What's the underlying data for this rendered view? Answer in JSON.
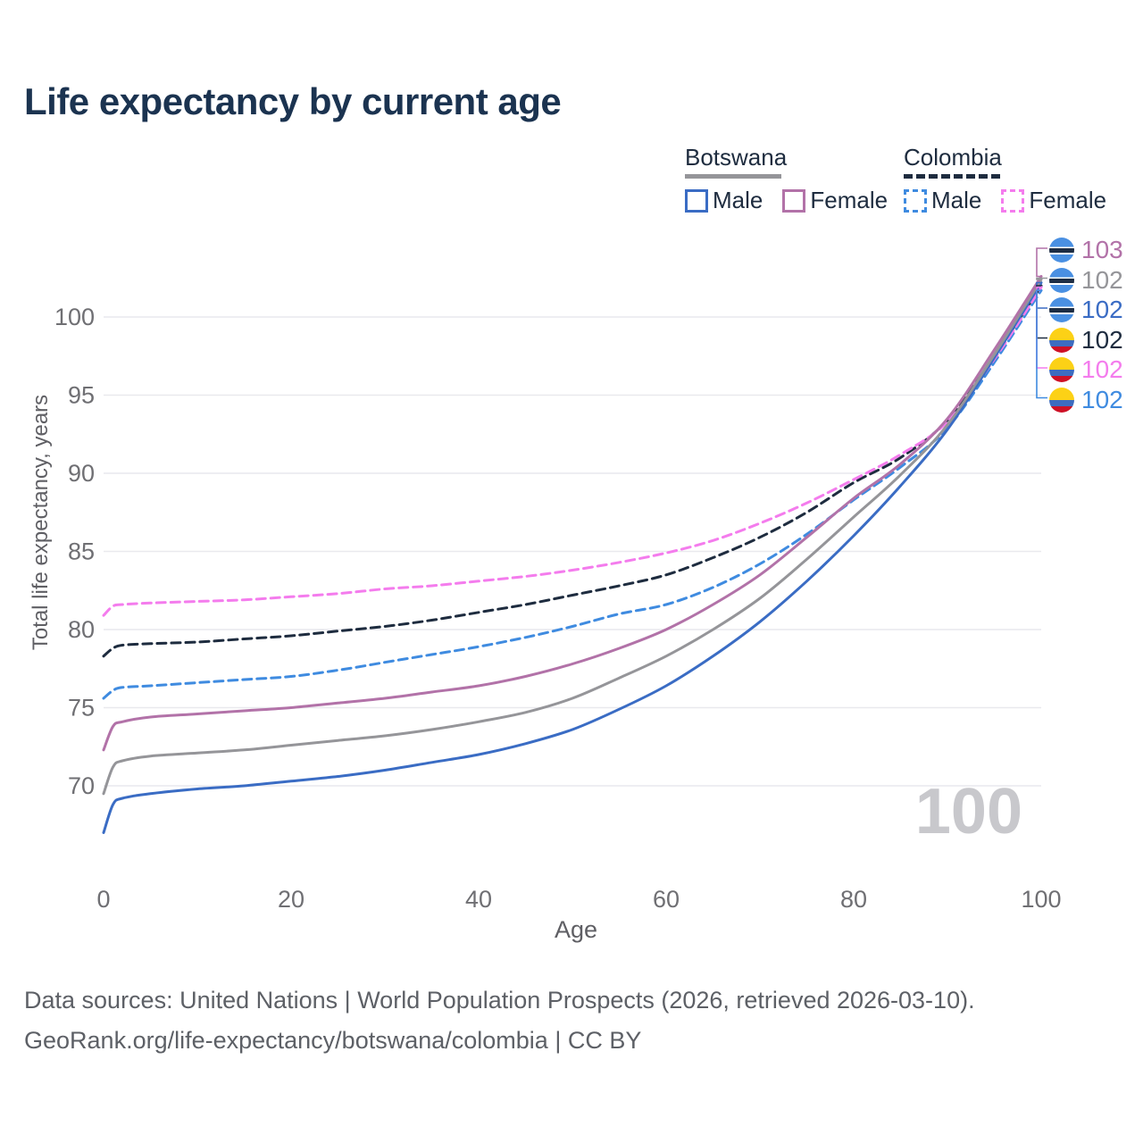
{
  "title": "Life expectancy by current age",
  "watermark": "100",
  "colors": {
    "title_text": "#1b3350",
    "legend_text": "#1e2c3f",
    "axis_text": "#6f6f73",
    "axis_label_text": "#5f5f64",
    "footer_text": "#5d6066",
    "grid": "#e9e9ee",
    "watermark": "#c8c8cc",
    "flag_botswana": [
      "#4a90e2",
      "#ffffff",
      "#1d2d44"
    ],
    "flag_colombia": [
      "#fcd116",
      "#3d6cc0",
      "#ce1126"
    ]
  },
  "legend": {
    "groups": [
      {
        "name": "Botswana",
        "style": "solid",
        "underline_color": "#959599",
        "items": [
          {
            "label": "Male",
            "color": "#3a6cc4"
          },
          {
            "label": "Female",
            "color": "#b272a8"
          }
        ]
      },
      {
        "name": "Colombia",
        "style": "dashed",
        "underline_color": "#1e2c3f",
        "items": [
          {
            "label": "Male",
            "color": "#3f8be0"
          },
          {
            "label": "Female",
            "color": "#f47ced"
          }
        ]
      }
    ]
  },
  "chart_data": {
    "type": "line",
    "title": "Life expectancy by current age",
    "xlabel": "Age",
    "ylabel": "Total life expectancy, years",
    "grid": "horizontal",
    "legend_position": "top-right",
    "xlim": [
      0,
      100
    ],
    "ylim": [
      66,
      104
    ],
    "xticks": [
      0,
      20,
      40,
      60,
      80,
      100
    ],
    "yticks": [
      70,
      75,
      80,
      85,
      90,
      95,
      100
    ],
    "x": [
      0,
      1,
      2,
      5,
      10,
      15,
      20,
      25,
      30,
      35,
      40,
      45,
      50,
      55,
      60,
      65,
      70,
      75,
      80,
      85,
      90,
      95,
      100
    ],
    "series": [
      {
        "id": "colombia_male",
        "name": "Colombia Male",
        "country": "Colombia",
        "color": "#3f8be0",
        "dash": "dashed",
        "values": [
          75.6,
          76.1,
          76.3,
          76.4,
          76.6,
          76.8,
          77.0,
          77.4,
          77.9,
          78.4,
          78.9,
          79.5,
          80.2,
          81.0,
          81.6,
          82.7,
          84.2,
          86.1,
          88.3,
          90.4,
          92.9,
          97.1,
          101.7
        ]
      },
      {
        "id": "colombia_all",
        "name": "Colombia (both sexes)",
        "country": "Colombia",
        "color": "#1e2c3f",
        "dash": "dashed",
        "values": [
          78.3,
          78.8,
          79.0,
          79.1,
          79.2,
          79.4,
          79.6,
          79.9,
          80.2,
          80.6,
          81.1,
          81.6,
          82.2,
          82.8,
          83.5,
          84.6,
          85.9,
          87.5,
          89.4,
          91.0,
          93.4,
          97.5,
          102.0
        ]
      },
      {
        "id": "colombia_female",
        "name": "Colombia Female",
        "country": "Colombia",
        "color": "#f47ced",
        "dash": "dashed",
        "values": [
          80.9,
          81.5,
          81.6,
          81.7,
          81.8,
          81.9,
          82.1,
          82.3,
          82.6,
          82.8,
          83.1,
          83.4,
          83.8,
          84.3,
          84.9,
          85.7,
          86.8,
          88.1,
          89.6,
          91.2,
          93.3,
          97.3,
          101.9
        ]
      },
      {
        "id": "botswana_male",
        "name": "Botswana Male",
        "country": "Botswana",
        "color": "#3a6cc4",
        "dash": "solid",
        "values": [
          67.0,
          68.8,
          69.2,
          69.5,
          69.8,
          70.0,
          70.3,
          70.6,
          71.0,
          71.5,
          72.0,
          72.7,
          73.6,
          74.9,
          76.4,
          78.3,
          80.5,
          83.1,
          86.0,
          89.2,
          92.8,
          97.4,
          102.2
        ]
      },
      {
        "id": "botswana_all",
        "name": "Botswana (both sexes)",
        "country": "Botswana",
        "color": "#959599",
        "dash": "solid",
        "values": [
          69.5,
          71.2,
          71.6,
          71.9,
          72.1,
          72.3,
          72.6,
          72.9,
          73.2,
          73.6,
          74.1,
          74.7,
          75.6,
          76.9,
          78.3,
          80.0,
          82.0,
          84.5,
          87.2,
          89.9,
          93.1,
          97.6,
          102.4
        ]
      },
      {
        "id": "botswana_female",
        "name": "Botswana Female",
        "country": "Botswana",
        "color": "#b272a8",
        "dash": "solid",
        "values": [
          72.3,
          73.8,
          74.1,
          74.4,
          74.6,
          74.8,
          75.0,
          75.3,
          75.6,
          76.0,
          76.4,
          77.0,
          77.8,
          78.8,
          80.0,
          81.6,
          83.5,
          85.9,
          88.4,
          90.6,
          93.5,
          97.9,
          102.6
        ]
      }
    ]
  },
  "end_labels": [
    {
      "series": "botswana_female",
      "value": "103",
      "flag": "botswana"
    },
    {
      "series": "botswana_all",
      "value": "102",
      "flag": "botswana"
    },
    {
      "series": "botswana_male",
      "value": "102",
      "flag": "botswana"
    },
    {
      "series": "colombia_all",
      "value": "102",
      "flag": "colombia"
    },
    {
      "series": "colombia_female",
      "value": "102",
      "flag": "colombia"
    },
    {
      "series": "colombia_male",
      "value": "102",
      "flag": "colombia"
    }
  ],
  "footer": {
    "line1": "Data sources: United Nations | World Population Prospects (2026, retrieved 2026-03-10).",
    "line2": "GeoRank.org/life-expectancy/botswana/colombia | CC BY"
  }
}
